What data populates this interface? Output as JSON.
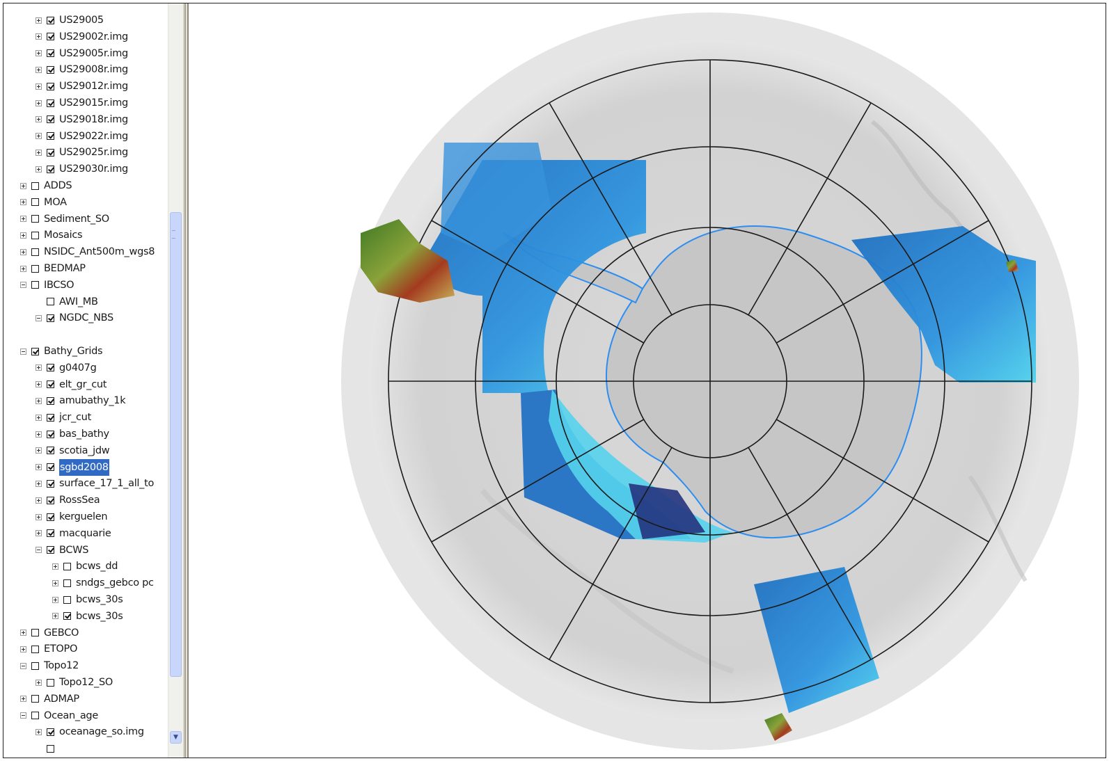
{
  "layers": [
    {
      "label": "US29005",
      "checked": true,
      "expander": "plus",
      "indent": 1
    },
    {
      "label": "US29002r.img",
      "checked": true,
      "expander": "plus",
      "indent": 1
    },
    {
      "label": "US29005r.img",
      "checked": true,
      "expander": "plus",
      "indent": 1
    },
    {
      "label": "US29008r.img",
      "checked": true,
      "expander": "plus",
      "indent": 1
    },
    {
      "label": "US29012r.img",
      "checked": true,
      "expander": "plus",
      "indent": 1
    },
    {
      "label": "US29015r.img",
      "checked": true,
      "expander": "plus",
      "indent": 1
    },
    {
      "label": "US29018r.img",
      "checked": true,
      "expander": "plus",
      "indent": 1
    },
    {
      "label": "US29022r.img",
      "checked": true,
      "expander": "plus",
      "indent": 1
    },
    {
      "label": "US29025r.img",
      "checked": true,
      "expander": "plus",
      "indent": 1
    },
    {
      "label": "US29030r.img",
      "checked": true,
      "expander": "plus",
      "indent": 1
    },
    {
      "label": "ADDS",
      "checked": false,
      "expander": "plus",
      "indent": 0
    },
    {
      "label": "MOA",
      "checked": false,
      "expander": "plus",
      "indent": 0
    },
    {
      "label": "Sediment_SO",
      "checked": false,
      "expander": "plus",
      "indent": 0
    },
    {
      "label": "Mosaics",
      "checked": false,
      "expander": "plus",
      "indent": 0
    },
    {
      "label": "NSIDC_Ant500m_wgs8",
      "checked": false,
      "expander": "plus",
      "indent": 0
    },
    {
      "label": "BEDMAP",
      "checked": false,
      "expander": "plus",
      "indent": 0
    },
    {
      "label": "IBCSO",
      "checked": false,
      "expander": "minus",
      "indent": 0
    },
    {
      "label": "AWI_MB",
      "checked": false,
      "expander": "none",
      "indent": 1
    },
    {
      "label": "NGDC_NBS",
      "checked": true,
      "expander": "minus",
      "indent": 1
    },
    {
      "label": "",
      "checked": null,
      "expander": "none",
      "indent": 1
    },
    {
      "label": "Bathy_Grids",
      "checked": true,
      "expander": "minus",
      "indent": 0
    },
    {
      "label": "g0407g",
      "checked": true,
      "expander": "plus",
      "indent": 1
    },
    {
      "label": "elt_gr_cut",
      "checked": true,
      "expander": "plus",
      "indent": 1
    },
    {
      "label": "amubathy_1k",
      "checked": true,
      "expander": "plus",
      "indent": 1
    },
    {
      "label": "jcr_cut",
      "checked": true,
      "expander": "plus",
      "indent": 1
    },
    {
      "label": "bas_bathy",
      "checked": true,
      "expander": "plus",
      "indent": 1
    },
    {
      "label": "scotia_jdw",
      "checked": true,
      "expander": "plus",
      "indent": 1
    },
    {
      "label": "sgbd2008",
      "checked": true,
      "expander": "plus",
      "indent": 1,
      "selected": true
    },
    {
      "label": "surface_17_1_all_to",
      "checked": true,
      "expander": "plus",
      "indent": 1
    },
    {
      "label": "RossSea",
      "checked": true,
      "expander": "plus",
      "indent": 1
    },
    {
      "label": "kerguelen",
      "checked": true,
      "expander": "plus",
      "indent": 1
    },
    {
      "label": "macquarie",
      "checked": true,
      "expander": "plus",
      "indent": 1
    },
    {
      "label": "BCWS",
      "checked": true,
      "expander": "minus",
      "indent": 1
    },
    {
      "label": "bcws_dd",
      "checked": false,
      "expander": "plus",
      "indent": 2
    },
    {
      "label": "sndgs_gebco pc",
      "checked": false,
      "expander": "plus",
      "indent": 2
    },
    {
      "label": "bcws_30s",
      "checked": false,
      "expander": "plus",
      "indent": 2
    },
    {
      "label": "bcws_30s",
      "checked": true,
      "expander": "plus",
      "indent": 2
    },
    {
      "label": "GEBCO",
      "checked": false,
      "expander": "plus",
      "indent": 0
    },
    {
      "label": "ETOPO",
      "checked": false,
      "expander": "plus",
      "indent": 0
    },
    {
      "label": "Topo12",
      "checked": false,
      "expander": "minus",
      "indent": 0
    },
    {
      "label": "Topo12_SO",
      "checked": false,
      "expander": "plus",
      "indent": 1
    },
    {
      "label": "ADMAP",
      "checked": false,
      "expander": "plus",
      "indent": 0
    },
    {
      "label": "Ocean_age",
      "checked": false,
      "expander": "minus",
      "indent": 0
    },
    {
      "label": "oceanage_so.img",
      "checked": true,
      "expander": "plus",
      "indent": 1
    },
    {
      "label": "",
      "checked": false,
      "expander": "none",
      "indent": 1
    }
  ],
  "scrollbar": {
    "down_arrow": "▼",
    "icon": "chevron-down-icon"
  },
  "map": {
    "projection_label": "",
    "colors": {
      "relief_gray": "#d4d4d4",
      "ice_sheet": "#c7c7c7",
      "grid_line": "#1a1a1a",
      "bathy_deep": "#1f6fc0",
      "bathy_mid": "#2f95e0",
      "bathy_shallow": "#4fd3ee",
      "coastline": "#2d8df0",
      "land_green": "#4f8a2a",
      "land_red": "#a33b1f"
    }
  }
}
